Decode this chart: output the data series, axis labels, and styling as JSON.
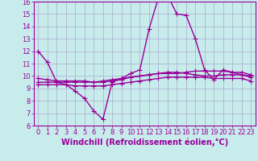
{
  "xlabel": "Windchill (Refroidissement éolien,°C)",
  "background_color": "#c8ecec",
  "line_color": "#990099",
  "grid_color": "#aaaacc",
  "xlim": [
    -0.5,
    23.5
  ],
  "ylim": [
    6,
    16
  ],
  "xticks": [
    0,
    1,
    2,
    3,
    4,
    5,
    6,
    7,
    8,
    9,
    10,
    11,
    12,
    13,
    14,
    15,
    16,
    17,
    18,
    19,
    20,
    21,
    22,
    23
  ],
  "yticks": [
    6,
    7,
    8,
    9,
    10,
    11,
    12,
    13,
    14,
    15,
    16
  ],
  "series": [
    {
      "x": [
        0,
        1,
        2,
        3,
        4,
        5,
        6,
        7,
        8,
        9,
        10,
        11,
        12,
        13,
        14,
        15,
        16,
        17,
        18,
        19,
        20,
        21,
        22,
        23
      ],
      "y": [
        12.0,
        11.1,
        9.5,
        9.3,
        8.8,
        8.2,
        7.2,
        6.5,
        9.5,
        9.8,
        10.2,
        10.5,
        13.8,
        16.3,
        16.5,
        15.0,
        14.9,
        13.0,
        10.5,
        9.7,
        10.5,
        10.3,
        10.1,
        10.0
      ]
    },
    {
      "x": [
        0,
        1,
        2,
        3,
        4,
        5,
        6,
        7,
        8,
        9,
        10,
        11,
        12,
        13,
        14,
        15,
        16,
        17,
        18,
        19,
        20,
        21,
        22,
        23
      ],
      "y": [
        9.5,
        9.5,
        9.5,
        9.5,
        9.5,
        9.5,
        9.5,
        9.6,
        9.7,
        9.8,
        9.9,
        10.0,
        10.1,
        10.2,
        10.2,
        10.2,
        10.3,
        10.4,
        10.4,
        10.4,
        10.4,
        10.3,
        10.3,
        10.1
      ]
    },
    {
      "x": [
        0,
        1,
        2,
        3,
        4,
        5,
        6,
        7,
        8,
        9,
        10,
        11,
        12,
        13,
        14,
        15,
        16,
        17,
        18,
        19,
        20,
        21,
        22,
        23
      ],
      "y": [
        9.3,
        9.3,
        9.3,
        9.3,
        9.2,
        9.2,
        9.2,
        9.2,
        9.3,
        9.4,
        9.5,
        9.6,
        9.7,
        9.8,
        9.9,
        9.9,
        9.9,
        9.9,
        9.9,
        9.8,
        9.8,
        9.8,
        9.8,
        9.6
      ]
    },
    {
      "x": [
        0,
        1,
        2,
        3,
        4,
        5,
        6,
        7,
        8,
        9,
        10,
        11,
        12,
        13,
        14,
        15,
        16,
        17,
        18,
        19,
        20,
        21,
        22,
        23
      ],
      "y": [
        9.8,
        9.7,
        9.6,
        9.6,
        9.6,
        9.6,
        9.5,
        9.5,
        9.6,
        9.7,
        9.9,
        10.0,
        10.1,
        10.2,
        10.3,
        10.3,
        10.2,
        10.1,
        10.0,
        10.0,
        10.1,
        10.1,
        10.1,
        9.9
      ]
    }
  ],
  "marker": "+",
  "markersize": 4,
  "linewidth": 1.0,
  "tick_labelsize": 6,
  "xlabel_fontsize": 7,
  "xlabel_fontweight": "bold"
}
